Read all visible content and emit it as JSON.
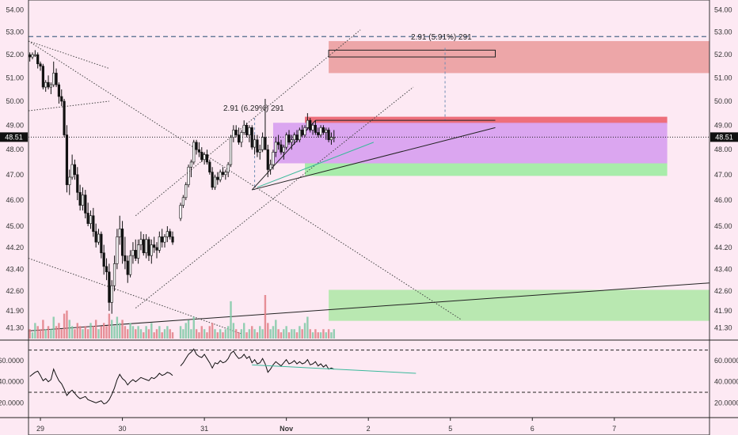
{
  "chart_data": {
    "type": "candlestick",
    "price_axis": {
      "ticks": [
        "54.00",
        "53.00",
        "52.00",
        "51.00",
        "50.00",
        "49.00",
        "48.00",
        "47.00",
        "46.00",
        "45.00",
        "44.20",
        "43.40",
        "42.60",
        "41.90",
        "41.30"
      ],
      "tick_values": [
        54.0,
        53.0,
        52.0,
        51.0,
        50.0,
        49.0,
        48.0,
        47.0,
        46.0,
        45.0,
        44.2,
        43.4,
        42.6,
        41.9,
        41.3
      ],
      "scale": "log",
      "range": [
        41.1,
        54.2
      ],
      "last_price_label": "48.51",
      "last_price": 48.51
    },
    "oscillator_axis": {
      "ticks": [
        "60.0000",
        "40.0000",
        "20.0000"
      ],
      "tick_values": [
        60,
        40,
        20
      ],
      "range": [
        12,
        78
      ],
      "levels": [
        70,
        30
      ]
    },
    "time_axis": {
      "labels": [
        "29",
        "30",
        "31",
        "Nov",
        "2",
        "5",
        "6",
        "7"
      ],
      "bar_index": [
        4,
        35,
        66,
        97,
        128,
        159,
        190,
        221
      ]
    },
    "candles": [
      [
        52.0,
        52.1,
        51.7,
        51.9
      ],
      [
        51.9,
        52.1,
        51.8,
        52.0
      ],
      [
        52.0,
        52.2,
        51.9,
        52.0
      ],
      [
        52.0,
        52.1,
        51.4,
        51.6
      ],
      [
        51.6,
        51.7,
        51.3,
        51.5
      ],
      [
        51.5,
        51.6,
        50.5,
        50.6
      ],
      [
        50.6,
        50.9,
        50.4,
        50.8
      ],
      [
        50.8,
        51.1,
        50.5,
        50.6
      ],
      [
        50.6,
        50.8,
        50.3,
        50.7
      ],
      [
        50.7,
        51.7,
        50.6,
        51.2
      ],
      [
        51.2,
        51.4,
        50.6,
        50.7
      ],
      [
        50.7,
        50.8,
        49.9,
        50.2
      ],
      [
        50.2,
        50.5,
        49.8,
        50.0
      ],
      [
        50.0,
        50.1,
        48.5,
        48.6
      ],
      [
        48.6,
        49.0,
        46.3,
        46.6
      ],
      [
        46.6,
        47.2,
        46.2,
        46.9
      ],
      [
        46.9,
        47.8,
        46.8,
        47.4
      ],
      [
        47.4,
        47.6,
        46.8,
        47.0
      ],
      [
        47.0,
        47.3,
        46.0,
        46.3
      ],
      [
        46.3,
        46.6,
        45.6,
        45.8
      ],
      [
        45.8,
        46.5,
        45.6,
        46.2
      ],
      [
        46.2,
        46.4,
        45.3,
        45.5
      ],
      [
        45.5,
        45.9,
        45.0,
        45.1
      ],
      [
        45.1,
        45.6,
        44.9,
        45.4
      ],
      [
        45.4,
        45.7,
        44.6,
        44.8
      ],
      [
        44.8,
        45.1,
        44.2,
        44.4
      ],
      [
        44.4,
        44.9,
        44.3,
        44.7
      ],
      [
        44.7,
        44.8,
        43.8,
        44.0
      ],
      [
        44.0,
        44.3,
        43.2,
        43.5
      ],
      [
        43.5,
        43.8,
        43.0,
        43.3
      ],
      [
        43.3,
        43.6,
        41.9,
        42.2
      ],
      [
        42.2,
        43.0,
        41.8,
        42.8
      ],
      [
        42.8,
        43.9,
        42.6,
        43.6
      ],
      [
        43.6,
        44.9,
        43.4,
        44.6
      ],
      [
        44.6,
        45.4,
        44.3,
        44.9
      ],
      [
        44.9,
        45.2,
        43.6,
        43.9
      ],
      [
        43.9,
        44.6,
        43.4,
        43.7
      ],
      [
        43.7,
        43.9,
        42.9,
        43.2
      ],
      [
        43.2,
        44.1,
        43.1,
        43.9
      ],
      [
        43.9,
        44.4,
        43.6,
        44.1
      ],
      [
        44.1,
        44.5,
        43.7,
        43.8
      ],
      [
        43.8,
        44.5,
        43.6,
        44.3
      ],
      [
        44.3,
        44.8,
        44.1,
        44.5
      ],
      [
        44.5,
        44.7,
        43.9,
        44.0
      ],
      [
        44.0,
        44.7,
        43.8,
        44.5
      ],
      [
        44.5,
        44.6,
        43.7,
        43.9
      ],
      [
        43.9,
        44.5,
        43.6,
        44.3
      ],
      [
        44.3,
        44.6,
        44.0,
        44.2
      ],
      [
        44.2,
        44.4,
        43.8,
        44.1
      ],
      [
        44.1,
        44.8,
        44.0,
        44.6
      ],
      [
        44.6,
        44.9,
        44.2,
        44.4
      ],
      [
        44.4,
        44.7,
        44.2,
        44.6
      ],
      [
        44.6,
        45.0,
        44.4,
        44.8
      ],
      [
        44.8,
        44.9,
        44.5,
        44.6
      ],
      [
        44.6,
        44.8,
        44.3,
        44.4
      ],
      null,
      null,
      [
        45.3,
        45.9,
        45.2,
        45.8
      ],
      [
        45.8,
        46.2,
        45.7,
        46.1
      ],
      [
        46.1,
        46.7,
        46.0,
        46.6
      ],
      [
        46.6,
        47.4,
        46.5,
        47.3
      ],
      [
        47.3,
        47.6,
        46.9,
        47.5
      ],
      [
        47.5,
        48.4,
        47.4,
        48.3
      ],
      [
        48.3,
        48.4,
        47.8,
        48.0
      ],
      [
        48.0,
        48.3,
        47.7,
        47.9
      ],
      [
        47.9,
        48.1,
        47.5,
        47.6
      ],
      [
        47.6,
        47.9,
        47.4,
        47.8
      ],
      [
        47.8,
        48.0,
        47.4,
        47.5
      ],
      [
        47.5,
        47.6,
        47.0,
        47.1
      ],
      [
        47.1,
        47.3,
        46.4,
        46.5
      ],
      [
        46.5,
        47.0,
        46.4,
        46.9
      ],
      [
        46.9,
        47.1,
        46.6,
        46.8
      ],
      [
        46.8,
        47.2,
        46.7,
        47.1
      ],
      [
        47.1,
        47.3,
        46.9,
        47.0
      ],
      [
        47.0,
        47.2,
        46.8,
        47.1
      ],
      [
        47.1,
        47.5,
        46.9,
        47.4
      ],
      [
        47.4,
        48.6,
        47.3,
        48.5
      ],
      [
        48.5,
        49.0,
        48.3,
        48.8
      ],
      [
        48.8,
        49.0,
        48.5,
        48.6
      ],
      [
        48.6,
        48.9,
        48.2,
        48.3
      ],
      [
        48.3,
        48.8,
        48.1,
        48.7
      ],
      [
        48.7,
        49.2,
        48.6,
        49.0
      ],
      [
        49.0,
        49.1,
        48.5,
        48.6
      ],
      [
        48.6,
        49.0,
        48.3,
        48.9
      ],
      [
        48.9,
        49.0,
        48.0,
        48.1
      ],
      [
        48.1,
        48.6,
        47.8,
        48.4
      ],
      [
        48.4,
        48.6,
        47.7,
        47.9
      ],
      [
        47.9,
        48.2,
        47.6,
        48.0
      ],
      [
        48.0,
        48.7,
        47.9,
        48.5
      ],
      [
        48.5,
        50.1,
        48.4,
        48.0
      ],
      [
        48.0,
        48.2,
        46.9,
        47.2
      ],
      [
        47.2,
        47.6,
        47.0,
        47.4
      ],
      [
        47.4,
        48.0,
        47.2,
        47.9
      ],
      [
        47.9,
        48.5,
        47.7,
        48.3
      ],
      [
        48.3,
        48.6,
        48.0,
        48.2
      ],
      [
        48.2,
        48.4,
        47.8,
        47.9
      ],
      [
        47.9,
        48.2,
        47.6,
        48.1
      ],
      [
        48.1,
        48.7,
        48.0,
        48.6
      ],
      [
        48.6,
        48.8,
        48.2,
        48.3
      ],
      [
        48.3,
        48.6,
        48.0,
        48.4
      ],
      [
        48.4,
        48.7,
        48.2,
        48.6
      ],
      [
        48.6,
        48.8,
        48.3,
        48.4
      ],
      [
        48.4,
        48.9,
        48.3,
        48.8
      ],
      [
        48.8,
        49.0,
        48.5,
        48.6
      ],
      [
        48.6,
        49.0,
        48.5,
        48.9
      ],
      [
        48.9,
        49.5,
        48.8,
        49.2
      ],
      [
        49.2,
        49.3,
        48.7,
        48.8
      ],
      [
        48.8,
        49.1,
        48.6,
        49.0
      ],
      [
        49.0,
        49.2,
        48.6,
        48.7
      ],
      [
        48.7,
        48.9,
        48.5,
        48.6
      ],
      [
        48.6,
        49.0,
        48.5,
        48.9
      ],
      [
        48.9,
        49.0,
        48.6,
        48.7
      ],
      [
        48.7,
        48.9,
        48.4,
        48.8
      ],
      [
        48.8,
        48.9,
        48.3,
        48.4
      ],
      [
        48.4,
        48.7,
        48.2,
        48.5
      ],
      [
        48.5,
        48.8,
        48.3,
        48.51
      ]
    ],
    "volume": [
      3,
      2,
      5,
      4,
      3,
      6,
      3,
      4,
      3,
      7,
      4,
      5,
      3,
      8,
      9,
      6,
      4,
      3,
      5,
      4,
      3,
      4,
      3,
      5,
      4,
      6,
      3,
      4,
      5,
      4,
      8,
      6,
      4,
      7,
      5,
      6,
      4,
      3,
      5,
      4,
      3,
      4,
      3,
      2,
      4,
      3,
      5,
      2,
      3,
      4,
      2,
      3,
      4,
      3,
      2,
      0,
      0,
      4,
      3,
      5,
      6,
      3,
      7,
      3,
      2,
      4,
      3,
      2,
      4,
      5,
      3,
      2,
      3,
      2,
      3,
      4,
      12,
      5,
      3,
      2,
      3,
      5,
      2,
      3,
      4,
      3,
      2,
      4,
      3,
      14,
      5,
      3,
      4,
      6,
      3,
      2,
      3,
      4,
      2,
      3,
      3,
      2,
      4,
      3,
      5,
      7,
      3,
      2,
      3,
      2,
      2,
      3,
      2,
      3,
      2,
      3
    ],
    "oscillator": [
      45,
      47,
      49,
      50,
      46,
      41,
      43,
      40,
      42,
      52,
      46,
      41,
      38,
      33,
      27,
      30,
      32,
      29,
      26,
      24,
      25,
      26,
      23,
      22,
      21,
      20,
      21,
      22,
      19,
      20,
      23,
      28,
      34,
      42,
      47,
      43,
      41,
      37,
      40,
      42,
      40,
      42,
      44,
      43,
      42,
      41,
      44,
      43,
      45,
      48,
      46,
      47,
      49,
      48,
      46,
      null,
      null,
      55,
      58,
      62,
      66,
      68,
      71,
      66,
      64,
      63,
      66,
      62,
      58,
      53,
      58,
      57,
      60,
      58,
      59,
      62,
      67,
      69,
      65,
      62,
      63,
      66,
      62,
      64,
      58,
      61,
      57,
      58,
      62,
      57,
      49,
      52,
      56,
      59,
      57,
      55,
      58,
      61,
      57,
      58,
      60,
      57,
      59,
      57,
      58,
      61,
      56,
      57,
      59,
      55,
      57,
      54,
      56,
      52,
      53,
      52
    ],
    "annotations": {
      "measure_1": "2.91 (6.29%) 291",
      "measure_2": "2.91 (5.91%) 291"
    }
  }
}
